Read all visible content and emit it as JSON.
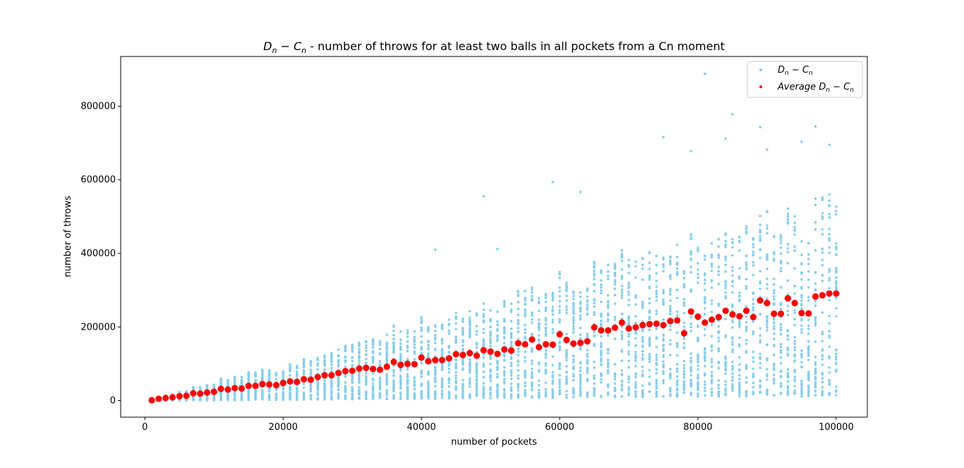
{
  "chart_data": {
    "type": "scatter",
    "title_parts": {
      "main": "D",
      "sub1": "n",
      "minus": " − ",
      "main2": "C",
      "sub2": "n",
      "rest": " - number of throws for at least two balls in all pockets from a Cn moment"
    },
    "xlabel": "number of pockets",
    "ylabel": "number of throws",
    "xlim": [
      -3500,
      104500
    ],
    "ylim": [
      -45000,
      935000
    ],
    "x_ticks": [
      0,
      20000,
      40000,
      60000,
      80000,
      100000
    ],
    "x_tick_labels": [
      "0",
      "20000",
      "40000",
      "60000",
      "80000",
      "100000"
    ],
    "y_ticks": [
      0,
      200000,
      400000,
      600000,
      800000
    ],
    "y_tick_labels": [
      "0",
      "200000",
      "400000",
      "600000",
      "800000"
    ],
    "legend_position": "top-right",
    "series": [
      {
        "name_parts": {
          "main": "D",
          "sub1": "n",
          "minus": " − ",
          "main2": "C",
          "sub2": "n"
        },
        "color": "#87ceeb",
        "marker": "small-dot",
        "description_samples": "Individual trials at each pocket count (1000 to 100000 step 1000); spread grows with x",
        "outliers": [
          [
            81000,
            888000
          ],
          [
            85000,
            778000
          ],
          [
            97000,
            745000
          ],
          [
            89000,
            743000
          ],
          [
            75000,
            716000
          ],
          [
            84000,
            712000
          ],
          [
            95000,
            703000
          ],
          [
            99000,
            695000
          ],
          [
            90000,
            682000
          ],
          [
            79000,
            678000
          ],
          [
            59000,
            594000
          ],
          [
            63000,
            567000
          ],
          [
            49000,
            555000
          ],
          [
            42000,
            410000
          ],
          [
            51000,
            412000
          ]
        ]
      },
      {
        "name_parts": {
          "prefix": "Average ",
          "main": "D",
          "sub1": "n",
          "minus": " − ",
          "main2": "C",
          "sub2": "n"
        },
        "color": "#ff0000",
        "marker": "large-dot",
        "x": [
          1000,
          2000,
          3000,
          4000,
          5000,
          6000,
          7000,
          8000,
          9000,
          10000,
          11000,
          12000,
          13000,
          14000,
          15000,
          16000,
          17000,
          18000,
          19000,
          20000,
          21000,
          22000,
          23000,
          24000,
          25000,
          26000,
          27000,
          28000,
          29000,
          30000,
          31000,
          32000,
          33000,
          34000,
          35000,
          36000,
          37000,
          38000,
          39000,
          40000,
          41000,
          42000,
          43000,
          44000,
          45000,
          46000,
          47000,
          48000,
          49000,
          50000,
          51000,
          52000,
          53000,
          54000,
          55000,
          56000,
          57000,
          58000,
          59000,
          60000,
          61000,
          62000,
          63000,
          64000,
          65000,
          66000,
          67000,
          68000,
          69000,
          70000,
          71000,
          72000,
          73000,
          74000,
          75000,
          76000,
          77000,
          78000,
          79000,
          80000,
          81000,
          82000,
          83000,
          84000,
          85000,
          86000,
          87000,
          88000,
          89000,
          90000,
          91000,
          92000,
          93000,
          94000,
          95000,
          96000,
          97000,
          98000,
          99000,
          100000
        ],
        "y": [
          1000,
          5000,
          7000,
          9000,
          12000,
          13000,
          20000,
          19000,
          22000,
          24000,
          32000,
          30000,
          34000,
          33000,
          40000,
          40000,
          45000,
          44000,
          42000,
          48000,
          52000,
          51000,
          58000,
          57000,
          64000,
          69000,
          69000,
          75000,
          80000,
          81000,
          87000,
          89000,
          86000,
          84000,
          92000,
          105000,
          97000,
          100000,
          99000,
          117000,
          107000,
          110000,
          110000,
          115000,
          126000,
          124000,
          129000,
          122000,
          137000,
          133000,
          127000,
          139000,
          136000,
          156000,
          153000,
          166000,
          145000,
          153000,
          152000,
          180000,
          165000,
          155000,
          157000,
          161000,
          199000,
          191000,
          191000,
          198000,
          212000,
          196000,
          199000,
          205000,
          208000,
          209000,
          205000,
          216000,
          218000,
          183000,
          242000,
          228000,
          212000,
          220000,
          227000,
          244000,
          234000,
          229000,
          244000,
          227000,
          272000,
          265000,
          236000,
          236000,
          278000,
          265000,
          238000,
          237000,
          283000,
          286000,
          291000,
          291000
        ]
      }
    ]
  }
}
